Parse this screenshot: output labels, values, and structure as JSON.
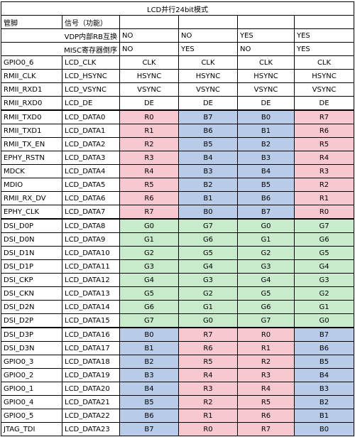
{
  "title": "LCD并行24bit模式",
  "header": [
    "管脚",
    "信号（功能）"
  ],
  "options": [
    {
      "label": "VDP内部RB互换",
      "values": [
        "NO",
        "NO",
        "YES",
        "YES"
      ]
    },
    {
      "label": "MISC寄存器倒序",
      "values": [
        "NO",
        "YES",
        "NO",
        "YES"
      ]
    }
  ],
  "rows": [
    [
      "GPIO0_6",
      "LCD_CLK",
      "CLK",
      "CLK",
      "CLK",
      "CLK"
    ],
    [
      "RMII_CLK",
      "LCD_HSYNC",
      "HSYNC",
      "HSYNC",
      "HSYNC",
      "HSYNC"
    ],
    [
      "RMII_RXD1",
      "LCD_VSYNC",
      "VSYNC",
      "VSYNC",
      "VSYNC",
      "VSYNC"
    ],
    [
      "RMII_RXD0",
      "LCD_DE",
      "DE",
      "DE",
      "DE",
      "DE"
    ],
    [
      "RMII_TXD0",
      "LCD_DATA0",
      "R0",
      "B7",
      "B0",
      "R7"
    ],
    [
      "RMII_TXD1",
      "LCD_DATA1",
      "R1",
      "B6",
      "B1",
      "R6"
    ],
    [
      "RMII_TX_EN",
      "LCD_DATA2",
      "R2",
      "B5",
      "B2",
      "R5"
    ],
    [
      "EPHY_RSTN",
      "LCD_DATA3",
      "R3",
      "B4",
      "B3",
      "R4"
    ],
    [
      "MDCK",
      "LCD_DATA4",
      "R4",
      "B3",
      "B4",
      "R3"
    ],
    [
      "MDIO",
      "LCD_DATA5",
      "R5",
      "B2",
      "B5",
      "R2"
    ],
    [
      "RMII_RX_DV",
      "LCD_DATA6",
      "R6",
      "B1",
      "B6",
      "R1"
    ],
    [
      "EPHY_CLK",
      "LCD_DATA7",
      "R7",
      "B0",
      "B7",
      "R0"
    ],
    [
      "DSI_D0P",
      "LCD_DATA8",
      "G0",
      "G7",
      "G0",
      "G7"
    ],
    [
      "DSI_D0N",
      "LCD_DATA9",
      "G1",
      "G6",
      "G1",
      "G6"
    ],
    [
      "DSI_D1N",
      "LCD_DATA10",
      "G2",
      "G5",
      "G2",
      "G5"
    ],
    [
      "DSI_D1P",
      "LCD_DATA11",
      "G3",
      "G4",
      "G3",
      "G4"
    ],
    [
      "DSI_CKP",
      "LCD_DATA12",
      "G4",
      "G3",
      "G4",
      "G3"
    ],
    [
      "DSI_CKN",
      "LCD_DATA13",
      "G5",
      "G2",
      "G5",
      "G2"
    ],
    [
      "DSI_D2N",
      "LCD_DATA14",
      "G6",
      "G1",
      "G6",
      "G1"
    ],
    [
      "DSI_D2P",
      "LCD_DATA15",
      "G7",
      "G0",
      "G7",
      "G0"
    ],
    [
      "DSI_D3P",
      "LCD_DATA16",
      "B0",
      "R7",
      "R0",
      "B7"
    ],
    [
      "DSI_D3N",
      "LCD_DATA17",
      "B1",
      "R6",
      "R1",
      "B6"
    ],
    [
      "GPIO0_3",
      "LCD_DATA18",
      "B2",
      "R5",
      "R2",
      "B5"
    ],
    [
      "GPIO0_2",
      "LCD_DATA19",
      "B3",
      "R4",
      "R3",
      "B4"
    ],
    [
      "GPIO0_1",
      "LCD_DATA20",
      "B4",
      "R3",
      "R4",
      "B3"
    ],
    [
      "GPIO0_4",
      "LCD_DATA21",
      "B5",
      "R2",
      "R5",
      "B2"
    ],
    [
      "GPIO0_5",
      "LCD_DATA22",
      "B6",
      "R1",
      "R6",
      "B1"
    ],
    [
      "JTAG_TDI",
      "LCD_DATA23",
      "B7",
      "R0",
      "R7",
      "B0"
    ]
  ]
}
